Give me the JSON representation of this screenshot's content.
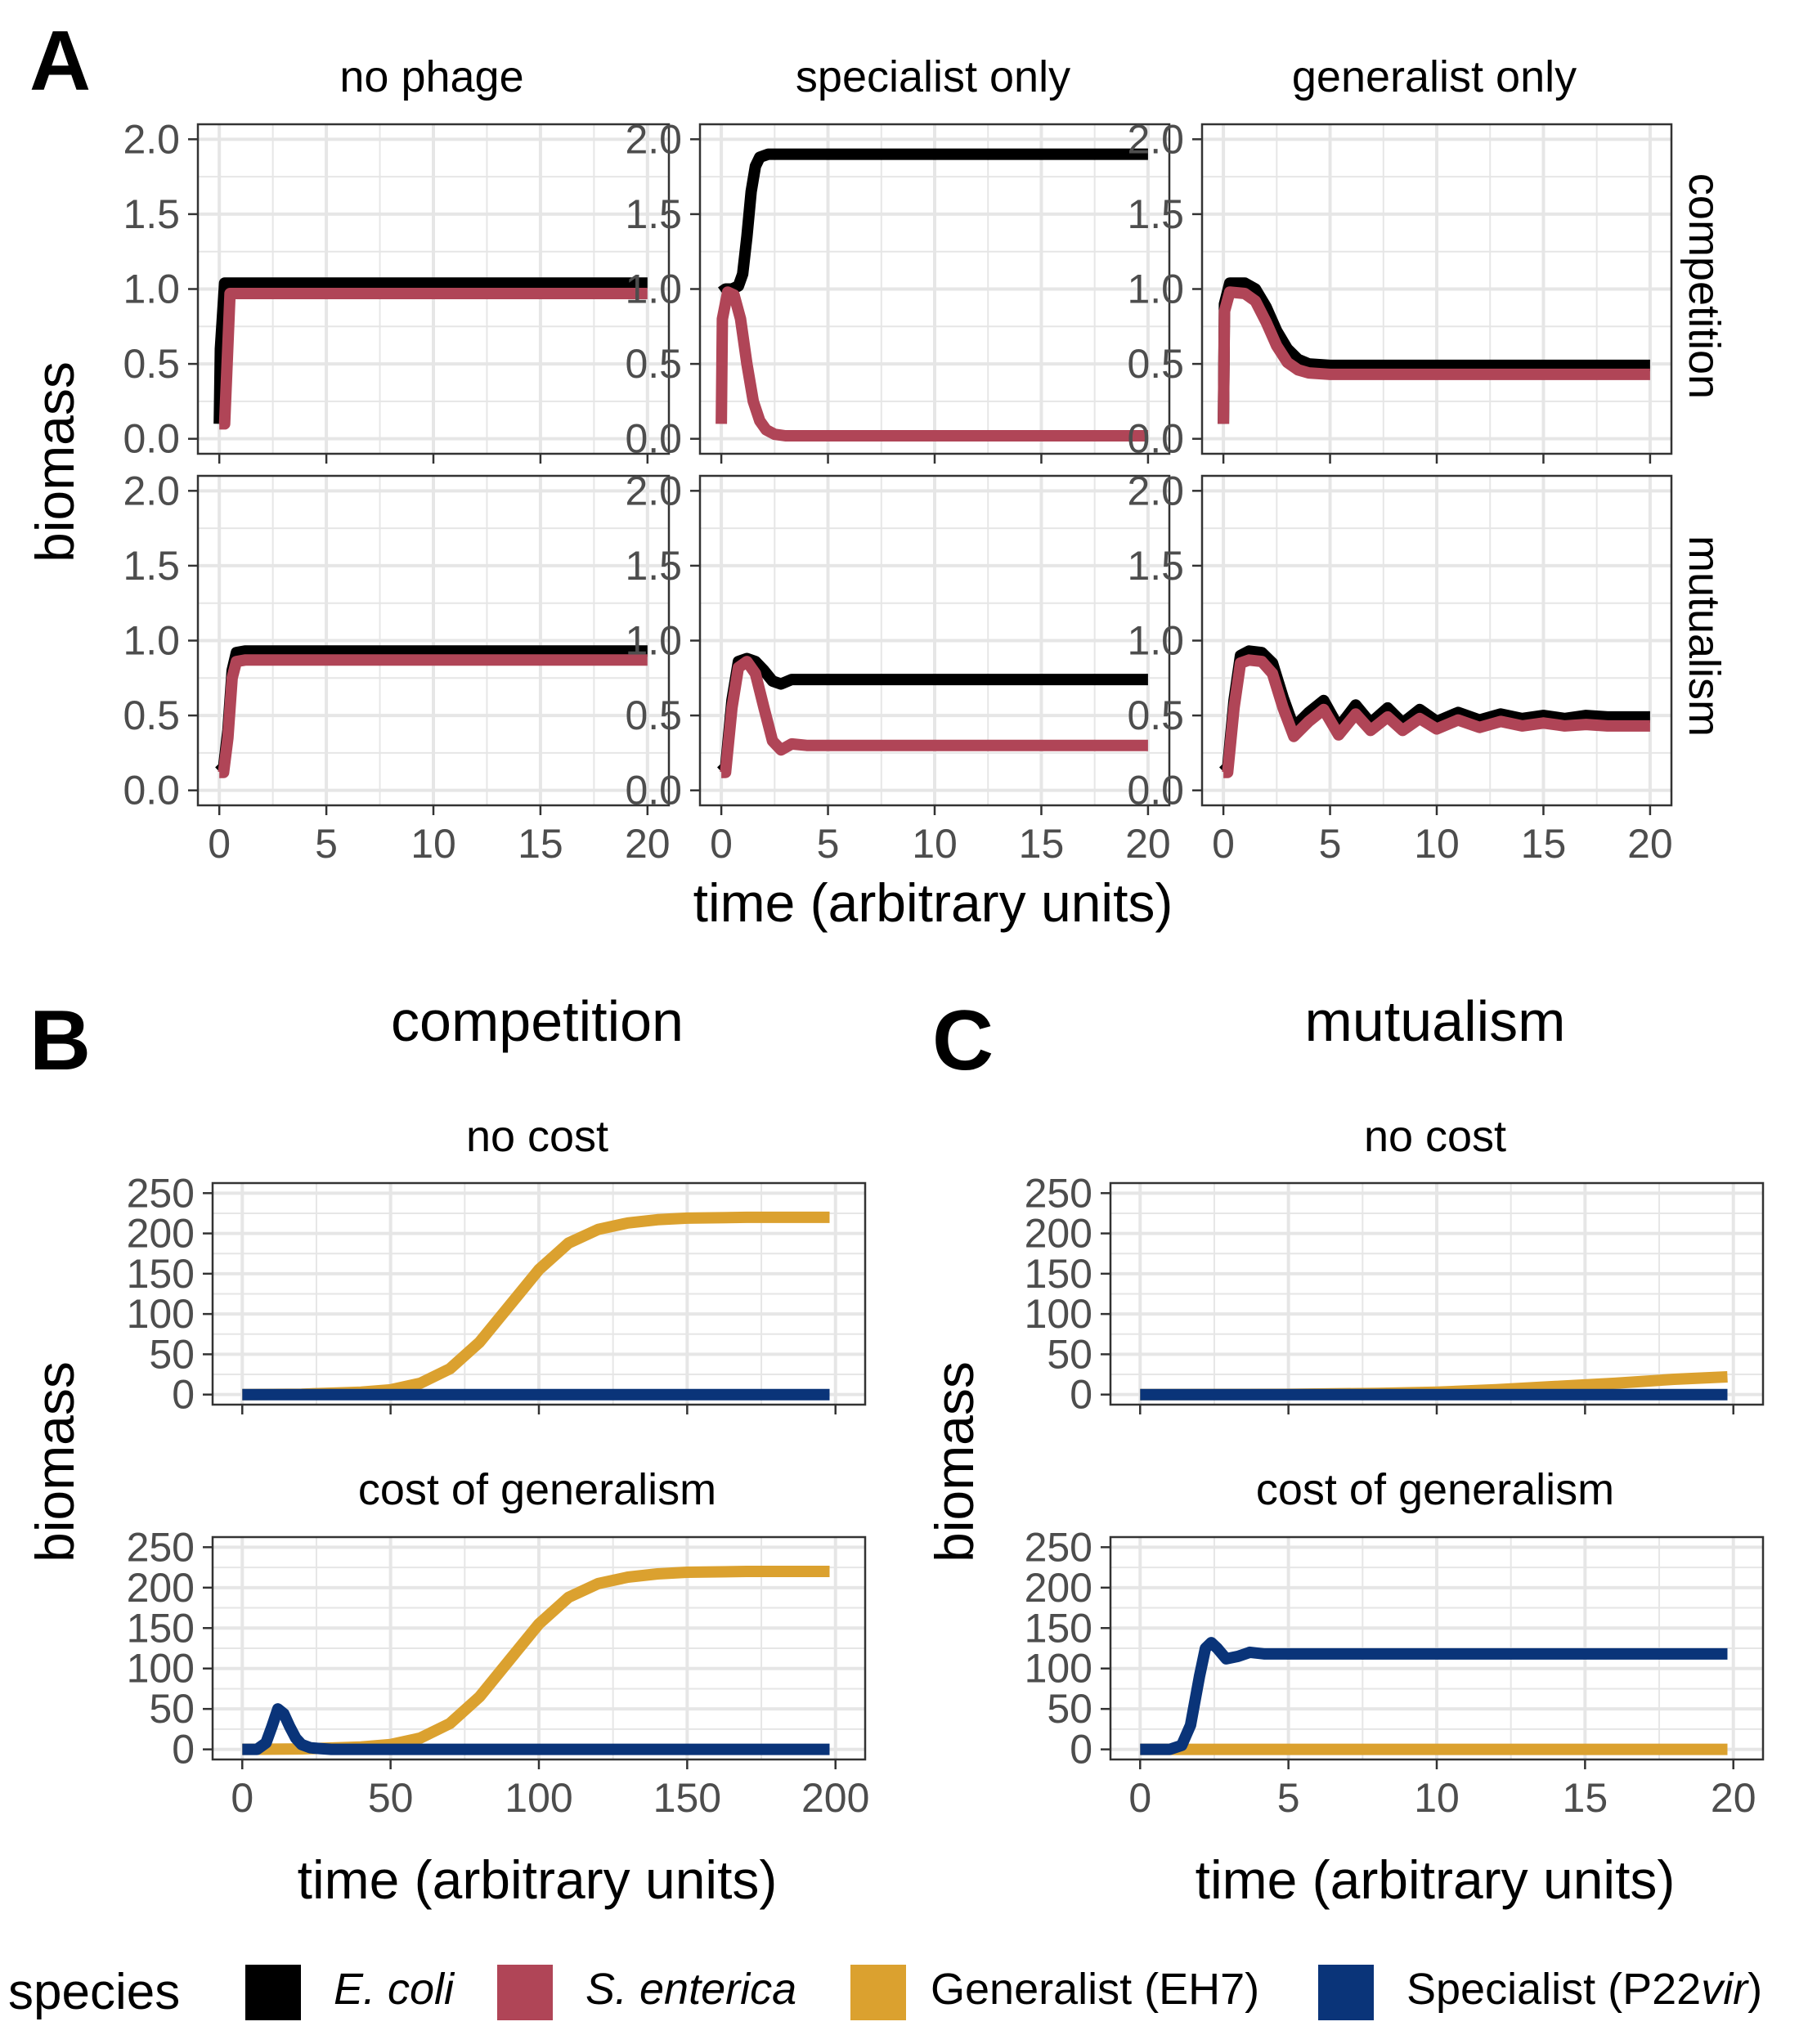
{
  "colors": {
    "E. coli": "#000000",
    "S. enterica": "#b04557",
    "Generalist": "#dba12f",
    "Specialist": "#0a3479",
    "grid": "#e6e6e6",
    "panel_border": "#333333",
    "tick_text": "#4d4d4d"
  },
  "panel_labels": {
    "A": "A",
    "B": "B",
    "C": "C"
  },
  "legend": {
    "title": "species",
    "items": [
      {
        "key": "E. coli",
        "text": "E. coli",
        "italic": true
      },
      {
        "key": "S. enterica",
        "text": "S. enterica",
        "italic": true
      },
      {
        "key": "Generalist",
        "text": "Generalist (EH7)",
        "italic": false
      },
      {
        "key": "Specialist",
        "text": "Specialist (P22",
        "italic_suffix": "vir",
        "close": ")"
      }
    ]
  },
  "panel_a": {
    "columns": [
      "no phage",
      "specialist only",
      "generalist only"
    ],
    "rows": [
      "competition",
      "mutualism"
    ],
    "ylabel": "biomass",
    "xlabel": "time (arbitrary units)"
  },
  "panel_b": {
    "title": "competition",
    "subtitles": [
      "no cost",
      "cost of generalism"
    ],
    "ylabel": "biomass",
    "xlabel": "time (arbitrary units)"
  },
  "panel_c": {
    "title": "mutualism",
    "subtitles": [
      "no cost",
      "cost of generalism"
    ],
    "ylabel": "biomass",
    "xlabel": "time (arbitrary units)"
  },
  "chart_data": [
    {
      "panel": "A",
      "type": "line",
      "facet": "competition / no phage",
      "xlim": [
        0,
        20
      ],
      "ylim": [
        0,
        2
      ],
      "xticks": [
        0,
        5,
        10,
        15,
        20
      ],
      "yticks": [
        0.0,
        0.5,
        1.0,
        1.5,
        2.0
      ],
      "series": [
        {
          "name": "E. coli",
          "x": [
            0,
            0.05,
            0.25,
            0.5,
            1,
            20
          ],
          "y": [
            0.1,
            0.6,
            1.04,
            1.04,
            1.04,
            1.04
          ]
        },
        {
          "name": "S. enterica",
          "x": [
            0,
            0.05,
            0.25,
            0.5,
            1,
            20
          ],
          "y": [
            0.1,
            0.1,
            0.1,
            0.97,
            0.97,
            0.97
          ]
        }
      ]
    },
    {
      "panel": "A",
      "type": "line",
      "facet": "competition / specialist only",
      "xlim": [
        0,
        20
      ],
      "ylim": [
        0,
        2
      ],
      "xticks": [
        0,
        5,
        10,
        15,
        20
      ],
      "yticks": [
        0.0,
        0.5,
        1.0,
        1.5,
        2.0
      ],
      "series": [
        {
          "name": "E. coli",
          "x": [
            0,
            0.2,
            0.5,
            0.8,
            1.0,
            1.2,
            1.4,
            1.6,
            1.8,
            2.2,
            3.0,
            20
          ],
          "y": [
            0.98,
            1.0,
            1.0,
            1.02,
            1.1,
            1.35,
            1.65,
            1.82,
            1.88,
            1.9,
            1.9,
            1.9
          ]
        },
        {
          "name": "S. enterica",
          "x": [
            0,
            0.05,
            0.3,
            0.6,
            0.9,
            1.2,
            1.5,
            1.8,
            2.1,
            2.5,
            3.0,
            4.0,
            20
          ],
          "y": [
            0.1,
            0.8,
            0.98,
            0.96,
            0.8,
            0.5,
            0.25,
            0.12,
            0.06,
            0.03,
            0.02,
            0.02,
            0.02
          ]
        }
      ]
    },
    {
      "panel": "A",
      "type": "line",
      "facet": "competition / generalist only",
      "xlim": [
        0,
        20
      ],
      "ylim": [
        0,
        2
      ],
      "xticks": [
        0,
        5,
        10,
        15,
        20
      ],
      "yticks": [
        0.0,
        0.5,
        1.0,
        1.5,
        2.0
      ],
      "series": [
        {
          "name": "E. coli",
          "x": [
            0,
            0.05,
            0.3,
            1.0,
            1.5,
            2.0,
            2.5,
            3.0,
            3.5,
            4.0,
            5.0,
            20
          ],
          "y": [
            0.1,
            0.9,
            1.04,
            1.04,
            1.0,
            0.88,
            0.72,
            0.6,
            0.53,
            0.5,
            0.49,
            0.49
          ]
        },
        {
          "name": "S. enterica",
          "x": [
            0,
            0.05,
            0.3,
            1.0,
            1.5,
            2.0,
            2.5,
            3.0,
            3.5,
            4.0,
            5.0,
            20
          ],
          "y": [
            0.1,
            0.85,
            0.98,
            0.97,
            0.92,
            0.78,
            0.62,
            0.51,
            0.46,
            0.44,
            0.43,
            0.43
          ]
        }
      ]
    },
    {
      "panel": "A",
      "type": "line",
      "facet": "mutualism / no phage",
      "xlim": [
        0,
        20
      ],
      "ylim": [
        0,
        2
      ],
      "xticks": [
        0,
        5,
        10,
        15,
        20
      ],
      "yticks": [
        0.0,
        0.5,
        1.0,
        1.5,
        2.0
      ],
      "series": [
        {
          "name": "E. coli",
          "x": [
            0,
            0.2,
            0.4,
            0.6,
            0.8,
            1.2,
            20
          ],
          "y": [
            0.18,
            0.15,
            0.4,
            0.8,
            0.92,
            0.93,
            0.93
          ]
        },
        {
          "name": "S. enterica",
          "x": [
            0,
            0.2,
            0.4,
            0.6,
            0.8,
            1.2,
            20
          ],
          "y": [
            0.12,
            0.12,
            0.35,
            0.75,
            0.86,
            0.87,
            0.87
          ]
        }
      ]
    },
    {
      "panel": "A",
      "type": "line",
      "facet": "mutualism / specialist only",
      "xlim": [
        0,
        20
      ],
      "ylim": [
        0,
        2
      ],
      "xticks": [
        0,
        5,
        10,
        15,
        20
      ],
      "yticks": [
        0.0,
        0.5,
        1.0,
        1.5,
        2.0
      ],
      "series": [
        {
          "name": "E. coli",
          "x": [
            0,
            0.2,
            0.5,
            0.8,
            1.2,
            1.6,
            2.0,
            2.4,
            2.8,
            3.3,
            4.0,
            20
          ],
          "y": [
            0.18,
            0.15,
            0.6,
            0.86,
            0.88,
            0.86,
            0.8,
            0.73,
            0.71,
            0.74,
            0.74,
            0.74
          ]
        },
        {
          "name": "S. enterica",
          "x": [
            0,
            0.2,
            0.5,
            0.8,
            1.2,
            1.6,
            2.0,
            2.4,
            2.8,
            3.3,
            4.0,
            20
          ],
          "y": [
            0.12,
            0.12,
            0.55,
            0.82,
            0.86,
            0.78,
            0.55,
            0.33,
            0.27,
            0.31,
            0.3,
            0.3
          ]
        }
      ]
    },
    {
      "panel": "A",
      "type": "line",
      "facet": "mutualism / generalist only",
      "xlim": [
        0,
        20
      ],
      "ylim": [
        0,
        2
      ],
      "xticks": [
        0,
        5,
        10,
        15,
        20
      ],
      "yticks": [
        0.0,
        0.5,
        1.0,
        1.5,
        2.0
      ],
      "series": [
        {
          "name": "E. coli",
          "x": [
            0,
            0.2,
            0.5,
            0.8,
            1.2,
            1.8,
            2.3,
            2.8,
            3.3,
            4.0,
            4.7,
            5.4,
            6.2,
            6.9,
            7.7,
            8.4,
            9.2,
            10.0,
            11.0,
            12.0,
            13.0,
            14.0,
            15.0,
            16.0,
            17.0,
            18.0,
            20
          ],
          "y": [
            0.18,
            0.15,
            0.6,
            0.9,
            0.93,
            0.92,
            0.85,
            0.62,
            0.42,
            0.52,
            0.6,
            0.42,
            0.57,
            0.45,
            0.55,
            0.45,
            0.54,
            0.46,
            0.52,
            0.47,
            0.51,
            0.48,
            0.5,
            0.48,
            0.5,
            0.49,
            0.49
          ]
        },
        {
          "name": "S. enterica",
          "x": [
            0,
            0.2,
            0.5,
            0.8,
            1.2,
            1.8,
            2.3,
            2.8,
            3.3,
            4.0,
            4.7,
            5.4,
            6.2,
            6.9,
            7.7,
            8.4,
            9.2,
            10.0,
            11.0,
            12.0,
            13.0,
            14.0,
            15.0,
            16.0,
            17.0,
            18.0,
            20
          ],
          "y": [
            0.12,
            0.12,
            0.55,
            0.85,
            0.87,
            0.86,
            0.78,
            0.55,
            0.36,
            0.46,
            0.54,
            0.37,
            0.51,
            0.4,
            0.49,
            0.4,
            0.48,
            0.41,
            0.47,
            0.42,
            0.46,
            0.43,
            0.45,
            0.43,
            0.44,
            0.43,
            0.43
          ]
        }
      ]
    },
    {
      "panel": "B",
      "type": "line",
      "facet": "competition / no cost",
      "xlim": [
        0,
        200
      ],
      "ylim": [
        0,
        250
      ],
      "xticks": [
        0,
        50,
        100,
        150,
        200
      ],
      "yticks": [
        0,
        50,
        100,
        150,
        200,
        250
      ],
      "series": [
        {
          "name": "Generalist",
          "x": [
            0,
            20,
            40,
            50,
            60,
            70,
            80,
            90,
            100,
            110,
            120,
            130,
            140,
            150,
            170,
            198
          ],
          "y": [
            0,
            0.5,
            3,
            6,
            14,
            32,
            65,
            110,
            155,
            188,
            205,
            213,
            217,
            219,
            220,
            220
          ]
        },
        {
          "name": "Specialist",
          "x": [
            0,
            198
          ],
          "y": [
            0,
            0
          ]
        }
      ]
    },
    {
      "panel": "B",
      "type": "line",
      "facet": "competition / cost of generalism",
      "xlim": [
        0,
        200
      ],
      "ylim": [
        0,
        250
      ],
      "xticks": [
        0,
        50,
        100,
        150,
        200
      ],
      "yticks": [
        0,
        50,
        100,
        150,
        200,
        250
      ],
      "series": [
        {
          "name": "Generalist",
          "x": [
            0,
            20,
            40,
            50,
            60,
            70,
            80,
            90,
            100,
            110,
            120,
            130,
            140,
            150,
            170,
            198
          ],
          "y": [
            0,
            0.5,
            3,
            6,
            14,
            32,
            65,
            110,
            155,
            188,
            205,
            213,
            217,
            219,
            220,
            220
          ]
        },
        {
          "name": "Specialist",
          "x": [
            0,
            5,
            8,
            10,
            12,
            14,
            16,
            18,
            20,
            23,
            26,
            30,
            40,
            198
          ],
          "y": [
            0,
            0,
            8,
            28,
            50,
            44,
            28,
            14,
            6,
            2,
            1,
            0,
            0,
            0
          ]
        }
      ]
    },
    {
      "panel": "C",
      "type": "line",
      "facet": "mutualism / no cost",
      "xlim": [
        0,
        20
      ],
      "ylim": [
        0,
        250
      ],
      "xticks": [
        0,
        5,
        10,
        15,
        20
      ],
      "yticks": [
        0,
        50,
        100,
        150,
        200,
        250
      ],
      "series": [
        {
          "name": "Generalist",
          "x": [
            0,
            5,
            8,
            10,
            12,
            14,
            16,
            18,
            19.8
          ],
          "y": [
            0,
            0.3,
            1.5,
            3,
            6,
            10,
            14,
            19,
            22
          ]
        },
        {
          "name": "Specialist",
          "x": [
            0,
            19.8
          ],
          "y": [
            0,
            0
          ]
        }
      ]
    },
    {
      "panel": "C",
      "type": "line",
      "facet": "mutualism / cost of generalism",
      "xlim": [
        0,
        20
      ],
      "ylim": [
        0,
        250
      ],
      "xticks": [
        0,
        5,
        10,
        15,
        20
      ],
      "yticks": [
        0,
        50,
        100,
        150,
        200,
        250
      ],
      "series": [
        {
          "name": "Generalist",
          "x": [
            0,
            19.8
          ],
          "y": [
            0,
            0
          ]
        },
        {
          "name": "Specialist",
          "x": [
            0,
            1.0,
            1.4,
            1.7,
            2.0,
            2.2,
            2.4,
            2.6,
            2.9,
            3.3,
            3.7,
            4.2,
            5.0,
            19.8
          ],
          "y": [
            0,
            0,
            5,
            30,
            90,
            125,
            132,
            125,
            112,
            115,
            120,
            118,
            118,
            118
          ]
        }
      ]
    }
  ]
}
